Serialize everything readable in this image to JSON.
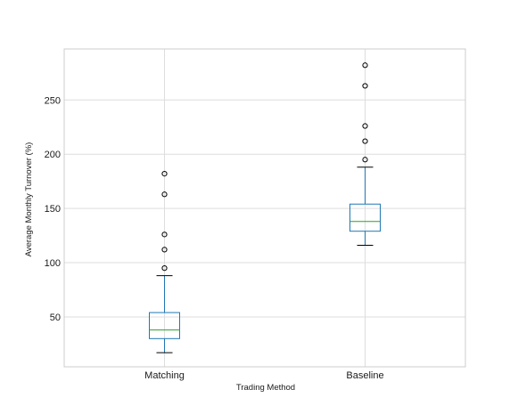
{
  "chart_data": {
    "type": "box",
    "title": "",
    "xlabel": "Trading Method",
    "ylabel": "Average Monthly Turnover (%)",
    "categories": [
      "Matching",
      "Baseline"
    ],
    "ylim": [
      4,
      297
    ],
    "yticks": [
      50,
      100,
      150,
      200,
      250
    ],
    "ytick_labels": [
      "50",
      "100",
      "150",
      "200",
      "250"
    ],
    "grid": true,
    "boxes": [
      {
        "name": "Matching",
        "whisker_low": 17,
        "q1": 30,
        "median": 38,
        "q3": 54,
        "whisker_high": 88,
        "fliers": [
          95,
          112,
          126,
          163,
          182
        ]
      },
      {
        "name": "Baseline",
        "whisker_low": 116,
        "q1": 129,
        "median": 138,
        "q3": 154,
        "whisker_high": 188,
        "fliers": [
          195,
          212,
          226,
          263,
          282
        ]
      }
    ],
    "colors": {
      "box": "#1f77b4",
      "median": "#2ca02c",
      "whisker": "#1f77b4",
      "cap": "#000000",
      "flier": "#000000",
      "grid": "#dddddd",
      "frame": "#cccccc"
    }
  }
}
